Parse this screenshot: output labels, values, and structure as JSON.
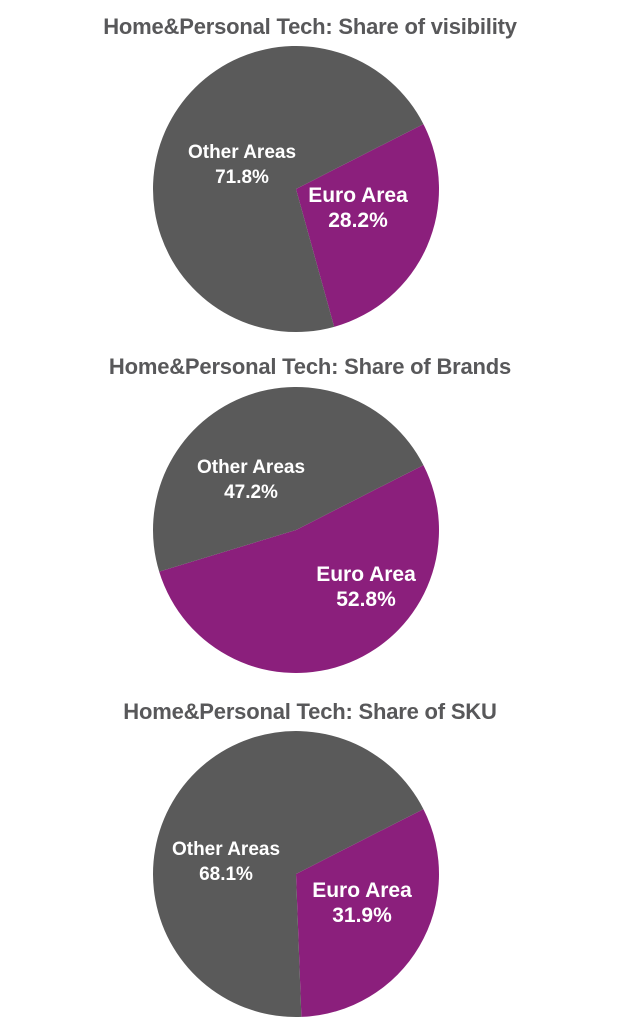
{
  "colors": {
    "other": "#5a5a5a",
    "euro": "#8b1f7c",
    "title": "#58585a",
    "label": "#ffffff"
  },
  "chart_data": [
    {
      "type": "pie",
      "title": "Home&Personal Tech: Share of visibility",
      "slices": [
        {
          "name": "Other Areas",
          "value": 71.8,
          "label": "71.8%"
        },
        {
          "name": "Euro Area",
          "value": 28.2,
          "label": "28.2%"
        }
      ]
    },
    {
      "type": "pie",
      "title": "Home&Personal Tech: Share of Brands",
      "slices": [
        {
          "name": "Other Areas",
          "value": 47.2,
          "label": "47.2%"
        },
        {
          "name": "Euro Area",
          "value": 52.8,
          "label": "52.8%"
        }
      ]
    },
    {
      "type": "pie",
      "title": "Home&Personal Tech: Share of SKU",
      "slices": [
        {
          "name": "Other Areas",
          "value": 68.1,
          "label": "68.1%"
        },
        {
          "name": "Euro Area",
          "value": 31.9,
          "label": "31.9%"
        }
      ]
    }
  ]
}
